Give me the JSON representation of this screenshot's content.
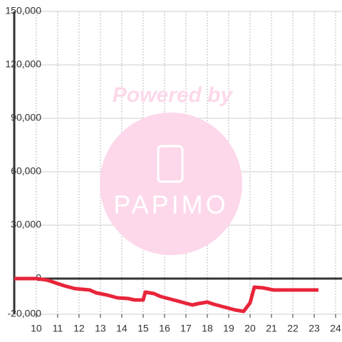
{
  "chart_data": {
    "type": "line",
    "watermark": {
      "line1": "Powered by",
      "line2": "PAPIMO"
    },
    "x": [
      8.97,
      10,
      10.5,
      10.8,
      11.3,
      11.8,
      12.5,
      12.8,
      13.3,
      13.8,
      14.3,
      14.6,
      15,
      15.1,
      15.5,
      15.8,
      16.3,
      16.8,
      17.3,
      17.6,
      18,
      18.3,
      18.8,
      19.3,
      19.7,
      20,
      20.2,
      20.6,
      21.1,
      22,
      23.2
    ],
    "series": [
      {
        "color": "#e8253a",
        "values": [
          0,
          0,
          -800,
          -2000,
          -4000,
          -5600,
          -6400,
          -8000,
          -9200,
          -10800,
          -11200,
          -12000,
          -12000,
          -7600,
          -8400,
          -10000,
          -11600,
          -13200,
          -14800,
          -14000,
          -13200,
          -14400,
          -16000,
          -17600,
          -18400,
          -13600,
          -4800,
          -5200,
          -6400,
          -6400,
          -6400
        ]
      }
    ],
    "xlim": [
      8.97,
      24.3
    ],
    "ylim": [
      -20000,
      150000
    ],
    "xticks": [
      10,
      11,
      12,
      13,
      14,
      15,
      16,
      17,
      18,
      19,
      20,
      21,
      22,
      23,
      24
    ],
    "yticks": [
      {
        "value": -20000,
        "label": "-20,000"
      },
      0,
      {
        "value": 30000,
        "label": "30,000"
      },
      {
        "value": 60000,
        "label": "60,000"
      },
      {
        "value": 90000,
        "label": "90,000"
      },
      {
        "value": 120000,
        "label": "120,000"
      },
      {
        "value": 150000,
        "label": "150,000"
      }
    ],
    "grid": true
  }
}
